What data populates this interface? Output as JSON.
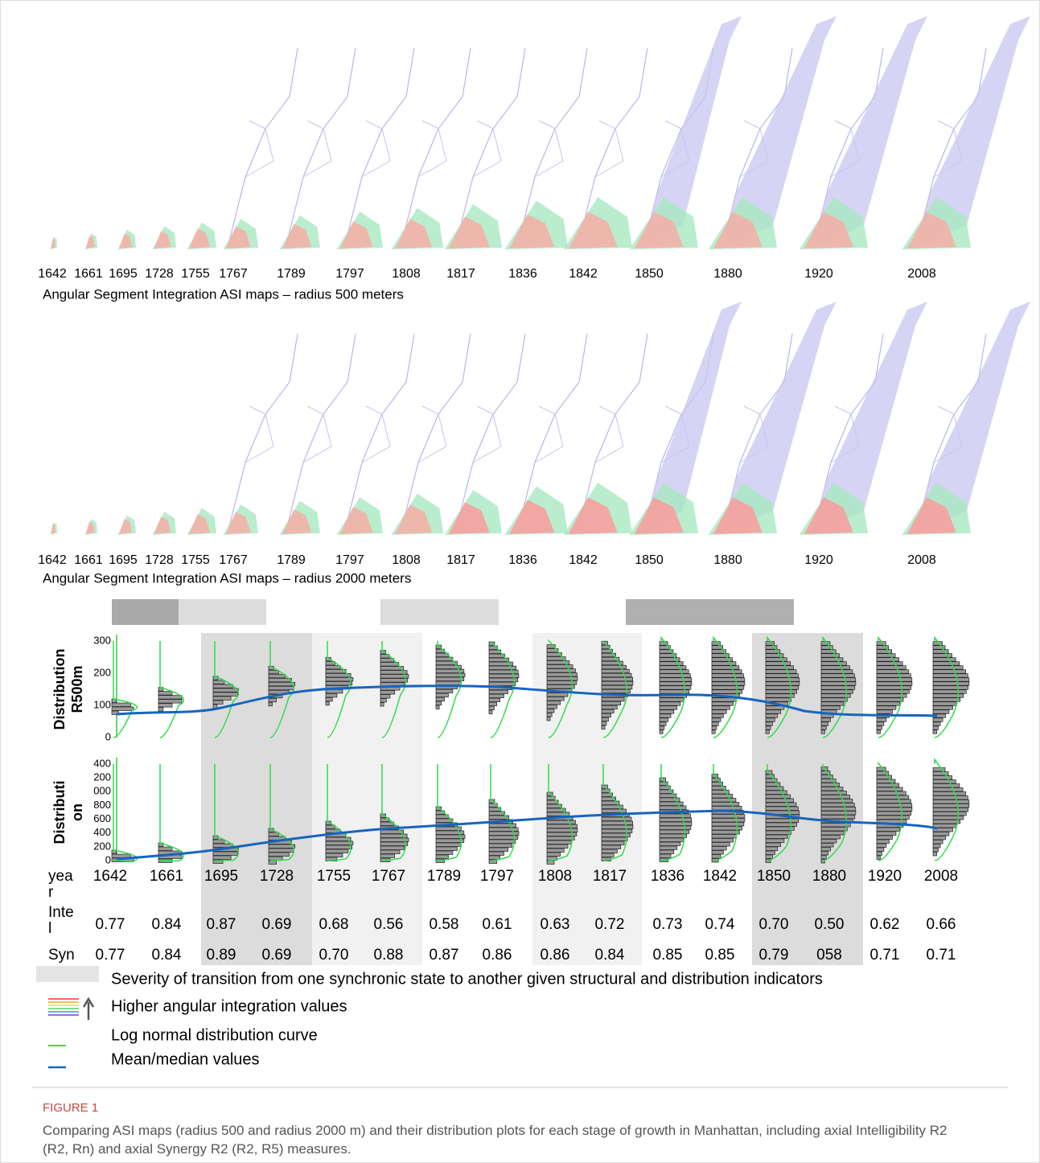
{
  "maps": [
    {
      "years": [
        "1642",
        "1661",
        "1695",
        "1728",
        "1755",
        "1767",
        "1789",
        "1797",
        "1808",
        "1817",
        "1836",
        "1842",
        "1850",
        "1880",
        "1920",
        "2008"
      ],
      "caption": "Angular Segment Integration ASI maps – radius 500 meters"
    },
    {
      "years": [
        "1642",
        "1661",
        "1695",
        "1728",
        "1755",
        "1767",
        "1789",
        "1797",
        "1808",
        "1817",
        "1836",
        "1842",
        "1850",
        "1880",
        "1920",
        "2008"
      ],
      "caption": "Angular Segment Integration ASI maps – radius 2000 meters"
    }
  ],
  "distribution": {
    "panels": [
      {
        "label_lines": [
          "Distribution",
          "R500m"
        ],
        "ticks": [
          "0",
          "100",
          "200",
          "300"
        ]
      },
      {
        "label_lines": [
          "Distributi",
          "on"
        ],
        "ticks": [
          "0",
          "200",
          "400",
          "600",
          "800",
          "000",
          "200",
          "400"
        ]
      }
    ],
    "table": [
      {
        "label_lines": [
          "yea",
          "r"
        ],
        "cells": [
          "1642",
          "1661",
          "1695",
          "1728",
          "1755",
          "1767",
          "1789",
          "1797",
          "1808",
          "1817",
          "1836",
          "1842",
          "1850",
          "1880",
          "1920",
          "2008"
        ]
      },
      {
        "label_lines": [
          "Inte",
          "l"
        ],
        "cells": [
          "0.77",
          "0.84",
          "0.87",
          "0.69",
          "0.68",
          "0.56",
          "0.58",
          "0.61",
          "0.63",
          "0.72",
          "0.73",
          "0.74",
          "0.70",
          "0.50",
          "0.62",
          "0.66"
        ]
      },
      {
        "label_lines": [
          "Syn"
        ],
        "cells": [
          "0.77",
          "0.84",
          "0.89",
          "0.69",
          "0.70",
          "0.88",
          "0.87",
          "0.86",
          "0.86",
          "0.84",
          "0.85",
          "0.85",
          "0.79",
          "058",
          "0.71",
          "0.71"
        ]
      }
    ]
  },
  "legend": [
    "Severity of transition from one synchronic state to another given structural and distribution indicators",
    "Higher angular integration values",
    "Log normal distribution curve",
    "Mean/median values"
  ],
  "figure": {
    "label": "FIGURE 1",
    "caption": "Comparing ASI maps (radius 500 and radius 2000 m) and their distribution plots for each stage of growth in Manhattan, including axial Intelligibility R2 (R2, Rn) and axial Synergy R2 (R2, R5) measures."
  }
}
